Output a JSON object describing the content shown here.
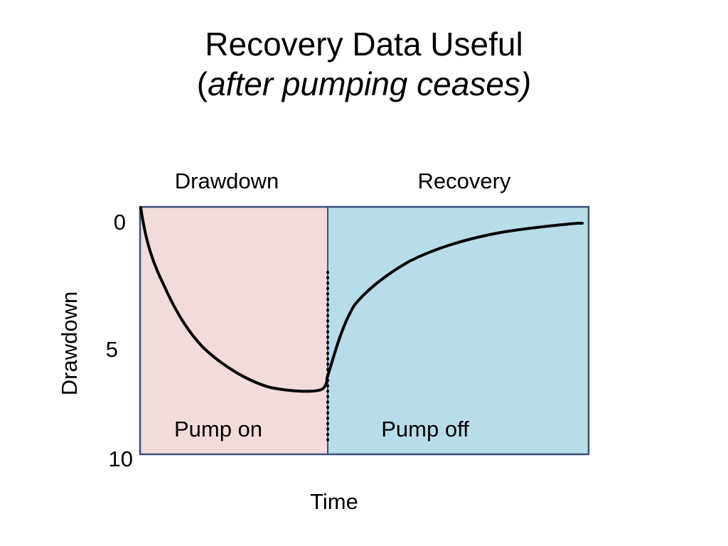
{
  "slide": {
    "title_line1": "Recovery Data Useful",
    "title_line2_open": "(",
    "title_line2_italic": "after pumping ceases)"
  },
  "diagram": {
    "region_labels": {
      "left_top": "Drawdown",
      "right_top": "Recovery",
      "left_bottom": "Pump on",
      "right_bottom": "Pump off"
    },
    "axis": {
      "y_label": "Drawdown",
      "x_label": "Time",
      "y_ticks": [
        "0",
        "5",
        "10"
      ],
      "y_inverted": true
    },
    "colors": {
      "left_region": "#f2dbdb",
      "right_region": "#b7dde8",
      "border": "#3b4e7a",
      "curve": "#000000"
    }
  }
}
